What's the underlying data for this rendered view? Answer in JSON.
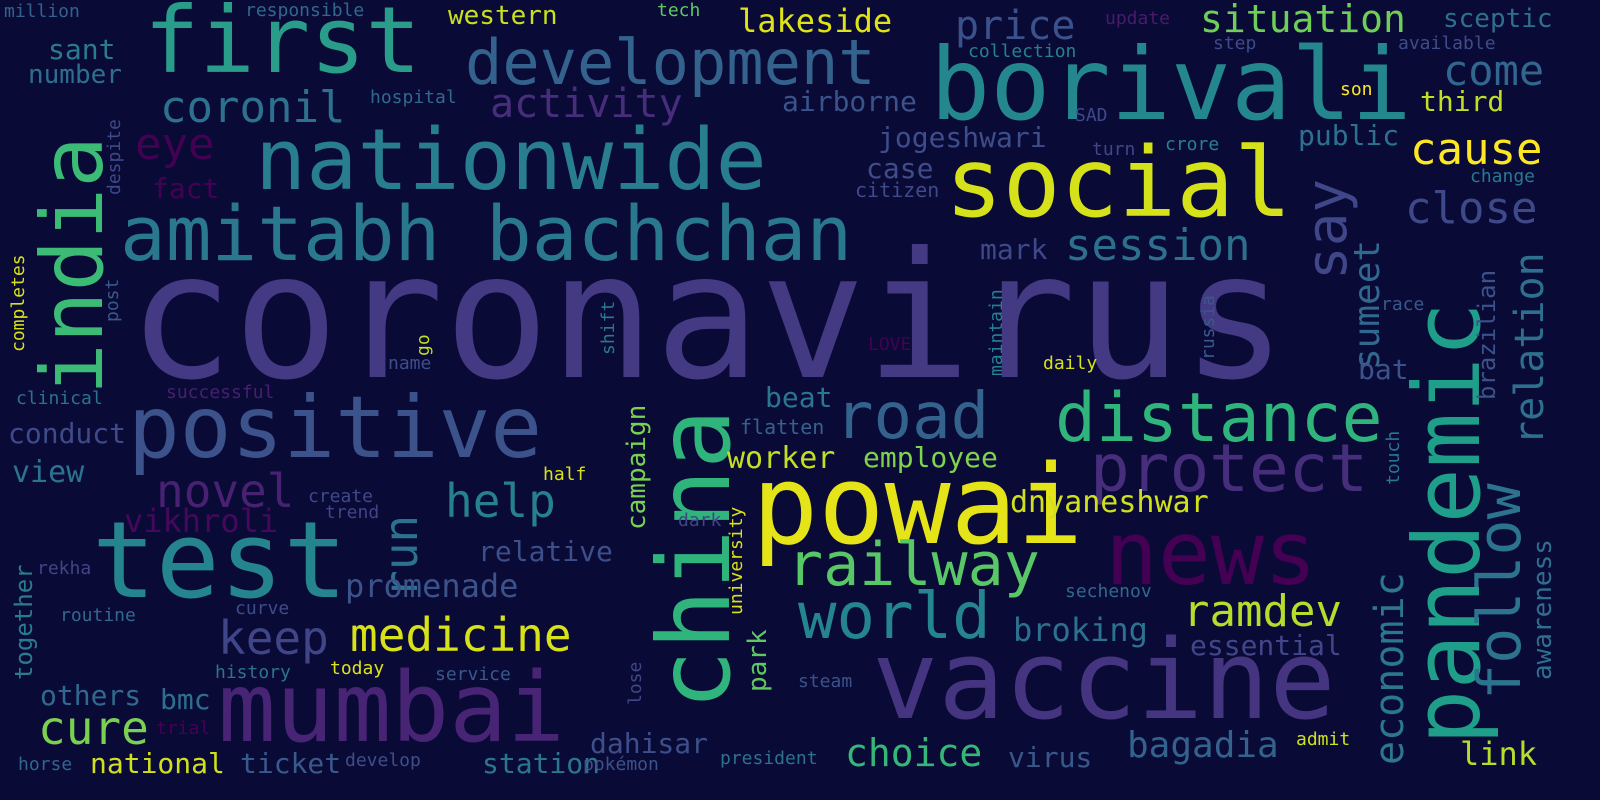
{
  "words": {
    "coronavirus": {
      "text": "coronavirus",
      "color": "#443983"
    },
    "first": {
      "text": "first",
      "color": "#2a9c8a"
    },
    "borivali": {
      "text": "borivali",
      "color": "#25878e"
    },
    "development": {
      "text": "development",
      "color": "#33628d"
    },
    "nationwide": {
      "text": "nationwide",
      "color": "#287d8e"
    },
    "social": {
      "text": "social",
      "color": "#d5e21a"
    },
    "amitabh_bachchan": {
      "text": "amitabh bachchan",
      "color": "#2a788e"
    },
    "india": {
      "text": "india",
      "color": "#3bbb75"
    },
    "positive": {
      "text": "positive",
      "color": "#3b528b"
    },
    "road": {
      "text": "road",
      "color": "#33638d"
    },
    "distance": {
      "text": "distance",
      "color": "#2fb47c"
    },
    "protect": {
      "text": "protect",
      "color": "#472e7c"
    },
    "china": {
      "text": "china",
      "color": "#2fb47c"
    },
    "powai": {
      "text": "powai",
      "color": "#e5e419"
    },
    "news": {
      "text": "news",
      "color": "#440154"
    },
    "pandemic": {
      "text": "pandemic",
      "color": "#1f9e89"
    },
    "test": {
      "text": "test",
      "color": "#25858e"
    },
    "vaccine": {
      "text": "vaccine",
      "color": "#453581"
    },
    "mumbai": {
      "text": "mumbai",
      "color": "#482475"
    },
    "railway": {
      "text": "railway",
      "color": "#58c765"
    },
    "world": {
      "text": "world",
      "color": "#25858e"
    },
    "price": {
      "text": "price",
      "color": "#3b518b"
    },
    "situation": {
      "text": "situation",
      "color": "#6ece58"
    },
    "come": {
      "text": "come",
      "color": "#31668e"
    },
    "close": {
      "text": "close",
      "color": "#3e4989"
    },
    "cause": {
      "text": "cause",
      "color": "#fde725"
    },
    "say": {
      "text": "say",
      "color": "#3f4788"
    },
    "coronil": {
      "text": "coronil",
      "color": "#2c728e"
    },
    "activity": {
      "text": "activity",
      "color": "#472d7b"
    },
    "eye": {
      "text": "eye",
      "color": "#440154"
    },
    "session": {
      "text": "session",
      "color": "#2d708e"
    },
    "jogeshwari": {
      "text": "jogeshwari",
      "color": "#3d4d8a"
    },
    "medicine": {
      "text": "medicine",
      "color": "#d8e219"
    },
    "keep": {
      "text": "keep",
      "color": "#404588"
    },
    "help": {
      "text": "help",
      "color": "#27808e"
    },
    "novel": {
      "text": "novel",
      "color": "#482173"
    },
    "run": {
      "text": "run",
      "color": "#2c728e"
    },
    "cure": {
      "text": "cure",
      "color": "#7ad151"
    },
    "ramdev": {
      "text": "ramdev",
      "color": "#b5de2b"
    },
    "follow": {
      "text": "follow",
      "color": "#2c738e"
    },
    "economic": {
      "text": "economic",
      "color": "#2a778e"
    },
    "sumeet": {
      "text": "sumeet",
      "color": "#30688e"
    },
    "relation": {
      "text": "relation",
      "color": "#2d708e"
    },
    "bagadia": {
      "text": "bagadia",
      "color": "#33628d"
    },
    "choice": {
      "text": "choice",
      "color": "#35b779"
    },
    "promenade": {
      "text": "promenade",
      "color": "#3b528b"
    },
    "lakeside": {
      "text": "lakeside",
      "color": "#dde318"
    },
    "western": {
      "text": "western",
      "color": "#c8e020"
    },
    "third": {
      "text": "third",
      "color": "#c0df25"
    },
    "public": {
      "text": "public",
      "color": "#2c728e"
    },
    "airborne": {
      "text": "airborne",
      "color": "#3a538b"
    },
    "sant": {
      "text": "sant",
      "color": "#297b8e"
    },
    "number": {
      "text": "number",
      "color": "#2e6f8e"
    },
    "fact": {
      "text": "fact",
      "color": "#440154"
    },
    "case": {
      "text": "case",
      "color": "#3e4c8a"
    },
    "citizen": {
      "text": "citizen",
      "color": "#3e4a89"
    },
    "mark": {
      "text": "mark",
      "color": "#3e4989"
    },
    "beat": {
      "text": "beat",
      "color": "#2a768e"
    },
    "worker": {
      "text": "worker",
      "color": "#c2df23"
    },
    "employee": {
      "text": "employee",
      "color": "#7fd34e"
    },
    "flatten": {
      "text": "flatten",
      "color": "#34618d"
    },
    "dnyaneshwar": {
      "text": "dnyaneshwar",
      "color": "#d0e11c"
    },
    "broking": {
      "text": "broking",
      "color": "#2c718e"
    },
    "essential": {
      "text": "essential",
      "color": "#404688"
    },
    "virus": {
      "text": "virus",
      "color": "#38588c"
    },
    "link": {
      "text": "link",
      "color": "#b5de2b"
    },
    "bat": {
      "text": "bat",
      "color": "#3b528b"
    },
    "conduct": {
      "text": "conduct",
      "color": "#3e4a89"
    },
    "view": {
      "text": "view",
      "color": "#2c738e"
    },
    "vikhroli": {
      "text": "vikhroli",
      "color": "#46085c"
    },
    "relative": {
      "text": "relative",
      "color": "#3c4f8a"
    },
    "national": {
      "text": "national",
      "color": "#d0e11c"
    },
    "ticket": {
      "text": "ticket",
      "color": "#38598c"
    },
    "station": {
      "text": "station",
      "color": "#2a768e"
    },
    "dahisar": {
      "text": "dahisar",
      "color": "#3c4f8a"
    },
    "bmc": {
      "text": "bmc",
      "color": "#2d708e"
    },
    "others": {
      "text": "others",
      "color": "#31688e"
    },
    "campaign": {
      "text": "campaign",
      "color": "#7ad151"
    },
    "park": {
      "text": "park",
      "color": "#5ec962"
    },
    "awareness": {
      "text": "awareness",
      "color": "#2e6e8e"
    },
    "brazilian": {
      "text": "brazilian",
      "color": "#3b528b"
    },
    "together": {
      "text": "together",
      "color": "#287c8e"
    },
    "million": {
      "text": "million",
      "color": "#33628d"
    },
    "responsible": {
      "text": "responsible",
      "color": "#30698e"
    },
    "tech": {
      "text": "tech",
      "color": "#5ec962"
    },
    "update": {
      "text": "update",
      "color": "#481b6d"
    },
    "sceptic": {
      "text": "sceptic",
      "color": "#2d708e"
    },
    "collection": {
      "text": "collection",
      "color": "#26818e"
    },
    "step": {
      "text": "step",
      "color": "#3e4a89"
    },
    "available": {
      "text": "available",
      "color": "#3e4c8a"
    },
    "hospital": {
      "text": "hospital",
      "color": "#30698e"
    },
    "SAD": {
      "text": "SAD",
      "color": "#3e4989"
    },
    "son": {
      "text": "son",
      "color": "#fde725"
    },
    "turn": {
      "text": "turn",
      "color": "#3f4788"
    },
    "crore": {
      "text": "crore",
      "color": "#26828e"
    },
    "change": {
      "text": "change",
      "color": "#29798e"
    },
    "despite": {
      "text": "despite",
      "color": "#3e4989"
    },
    "completes": {
      "text": "completes",
      "color": "#d8e219"
    },
    "post": {
      "text": "post",
      "color": "#38598c"
    },
    "go": {
      "text": "go",
      "color": "#c2df23"
    },
    "name": {
      "text": "name",
      "color": "#3d4e8a"
    },
    "shift": {
      "text": "shift",
      "color": "#2a788e"
    },
    "maintain": {
      "text": "maintain",
      "color": "#26818e"
    },
    "russia": {
      "text": "russia",
      "color": "#37598c"
    },
    "LOVE": {
      "text": "LOVE",
      "color": "#440154"
    },
    "daily": {
      "text": "daily",
      "color": "#d5e21a"
    },
    "race": {
      "text": "race",
      "color": "#38598c"
    },
    "touch": {
      "text": "touch",
      "color": "#2a768e"
    },
    "clinical": {
      "text": "clinical",
      "color": "#2c718e"
    },
    "successful": {
      "text": "successful",
      "color": "#481f70"
    },
    "create": {
      "text": "create",
      "color": "#3e4989"
    },
    "trend": {
      "text": "trend",
      "color": "#414487"
    },
    "dark": {
      "text": "dark",
      "color": "#414487"
    },
    "half": {
      "text": "half",
      "color": "#d8e219"
    },
    "university": {
      "text": "university",
      "color": "#d8e219"
    },
    "rekha": {
      "text": "rekha",
      "color": "#404588"
    },
    "routine": {
      "text": "routine",
      "color": "#31688e"
    },
    "curve": {
      "text": "curve",
      "color": "#3e4c8a"
    },
    "history": {
      "text": "history",
      "color": "#2c738e"
    },
    "today": {
      "text": "today",
      "color": "#dde318"
    },
    "service": {
      "text": "service",
      "color": "#38598c"
    },
    "trial": {
      "text": "trial",
      "color": "#440154"
    },
    "lose": {
      "text": "lose",
      "color": "#3f4788"
    },
    "steam": {
      "text": "steam",
      "color": "#3b528b"
    },
    "sechenov": {
      "text": "sechenov",
      "color": "#30698e"
    },
    "admit": {
      "text": "admit",
      "color": "#cde11d"
    },
    "horse": {
      "text": "horse",
      "color": "#31668e"
    },
    "develop": {
      "text": "develop",
      "color": "#3d4e8a"
    },
    "pokemon": {
      "text": "pokémon",
      "color": "#3b528b"
    },
    "president": {
      "text": "president",
      "color": "#2c728e"
    }
  }
}
